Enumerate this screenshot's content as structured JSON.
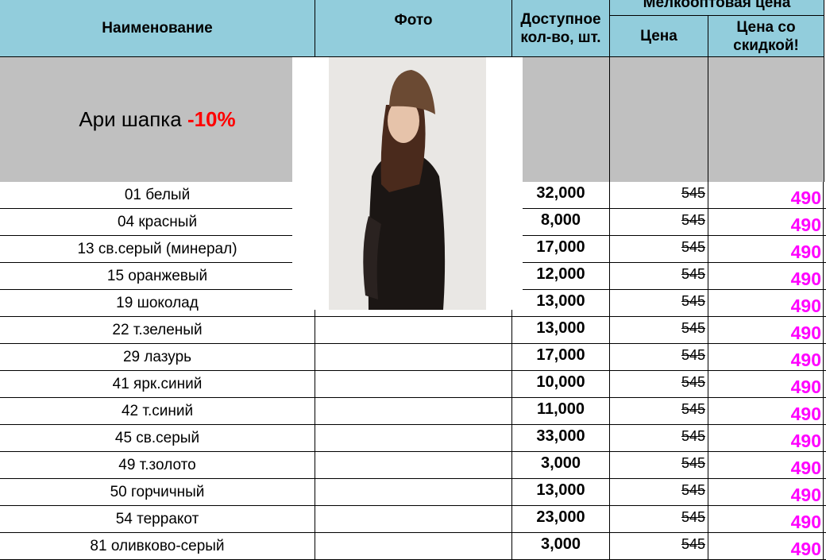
{
  "header": {
    "name": "Наименование",
    "photo": "Фото",
    "qty": "Доступное кол-во, шт.",
    "wholesale": "Мелкооптовая цена",
    "price": "Цена",
    "discount_price": "Цена со скидкой!"
  },
  "product": {
    "title": "Ари шапка",
    "discount": "-10%",
    "discount_color": "#ff0000"
  },
  "accent_color": "#ff00ff",
  "rows": [
    {
      "name": "01 белый",
      "qty": "32,000",
      "price": "545",
      "discount": "490"
    },
    {
      "name": "04 красный",
      "qty": "8,000",
      "price": "545",
      "discount": "490"
    },
    {
      "name": "13 св.серый (минерал)",
      "qty": "17,000",
      "price": "545",
      "discount": "490"
    },
    {
      "name": "15 оранжевый",
      "qty": "12,000",
      "price": "545",
      "discount": "490"
    },
    {
      "name": "19 шоколад",
      "qty": "13,000",
      "price": "545",
      "discount": "490"
    },
    {
      "name": "22 т.зеленый",
      "qty": "13,000",
      "price": "545",
      "discount": "490"
    },
    {
      "name": "29 лазурь",
      "qty": "17,000",
      "price": "545",
      "discount": "490"
    },
    {
      "name": "41 ярк.синий",
      "qty": "10,000",
      "price": "545",
      "discount": "490"
    },
    {
      "name": "42 т.синий",
      "qty": "11,000",
      "price": "545",
      "discount": "490"
    },
    {
      "name": "45 св.серый",
      "qty": "33,000",
      "price": "545",
      "discount": "490"
    },
    {
      "name": "49 т.золото",
      "qty": "3,000",
      "price": "545",
      "discount": "490"
    },
    {
      "name": "50 горчичный",
      "qty": "13,000",
      "price": "545",
      "discount": "490"
    },
    {
      "name": "54 терракот",
      "qty": "23,000",
      "price": "545",
      "discount": "490"
    },
    {
      "name": "81 оливково-серый",
      "qty": "3,000",
      "price": "545",
      "discount": "490"
    }
  ]
}
